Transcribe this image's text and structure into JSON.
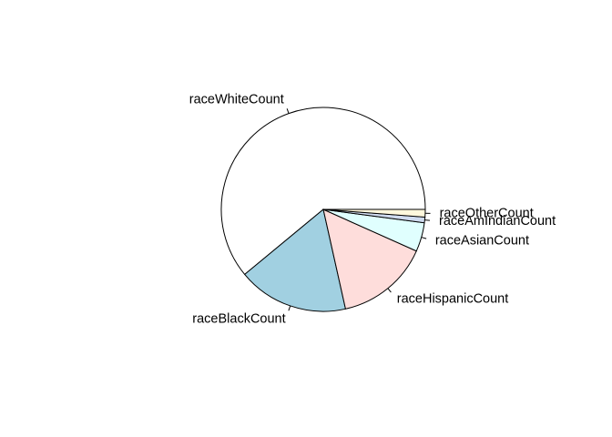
{
  "chart_data": {
    "type": "pie",
    "title": "",
    "start_angle_deg": 0,
    "direction": "counterclockwise",
    "slices": [
      {
        "label": "raceWhiteCount",
        "value": 61.0,
        "color": "#FFFFFF"
      },
      {
        "label": "raceBlackCount",
        "value": 17.5,
        "color": "#A1D0E1"
      },
      {
        "label": "raceHispanicCount",
        "value": 14.8,
        "color": "#FEDDDB"
      },
      {
        "label": "raceAsianCount",
        "value": 4.6,
        "color": "#E0FFFE"
      },
      {
        "label": "raceAmIndianCount",
        "value": 0.9,
        "color": "#CFDBEF"
      },
      {
        "label": "raceOtherCount",
        "value": 1.2,
        "color": "#FFF8DD"
      }
    ]
  }
}
